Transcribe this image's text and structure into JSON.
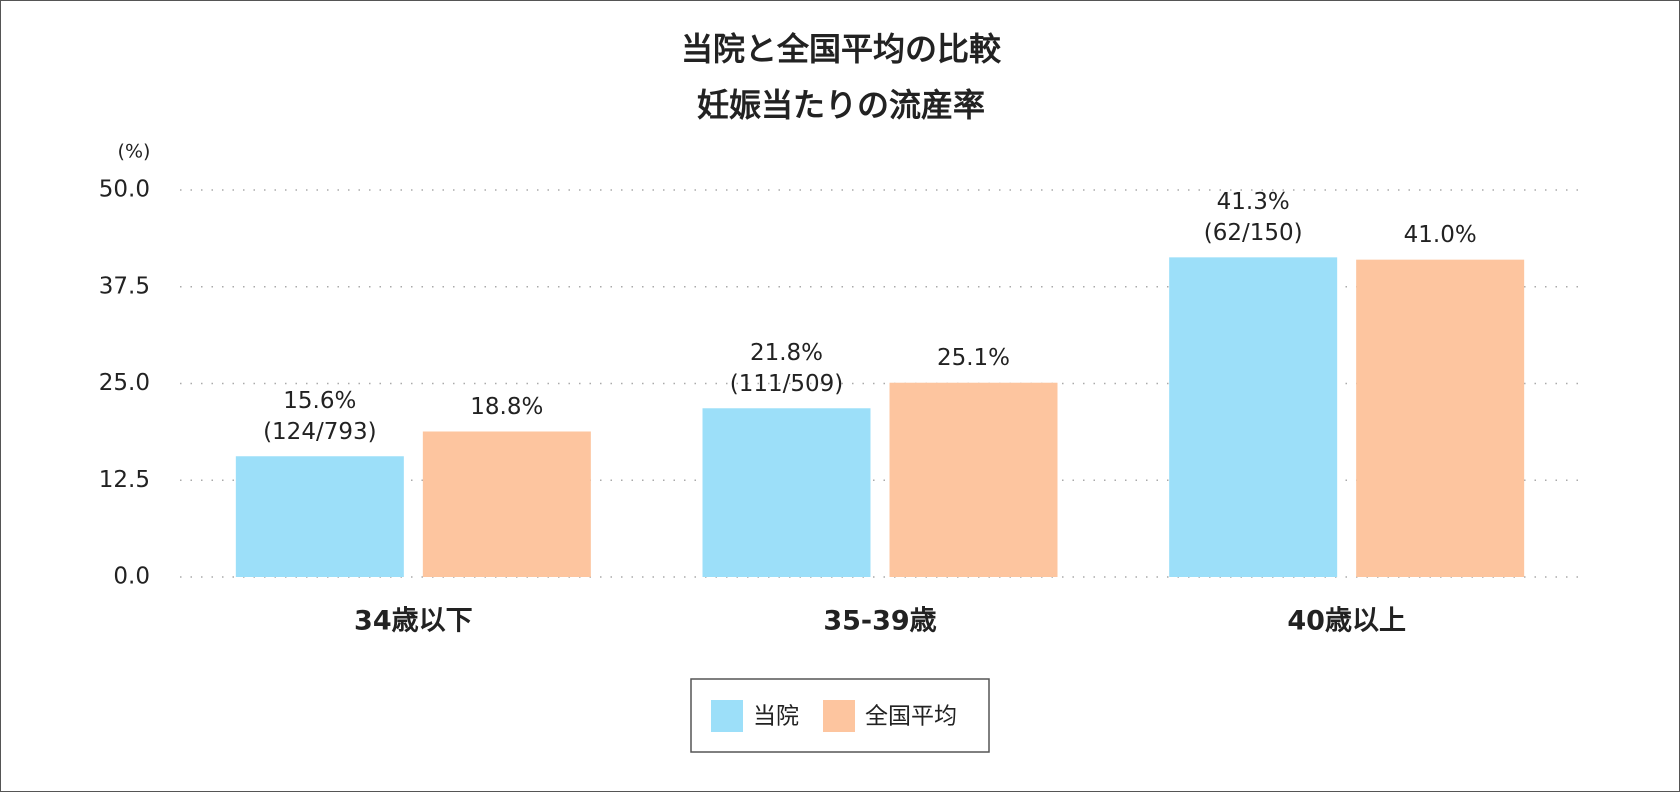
{
  "chart_data": {
    "type": "bar",
    "title": [
      "当院と全国平均の比較",
      "妊娠当たりの流産率"
    ],
    "y_unit": "(%)",
    "categories": [
      "34歳以下",
      "35-39歳",
      "40歳以上"
    ],
    "series": [
      {
        "name": "当院",
        "color": "#9cdff9",
        "values": [
          15.6,
          21.8,
          41.3
        ],
        "value_labels": [
          "15.6%",
          "21.8%",
          "41.3%"
        ],
        "value_sublabels": [
          "(124/793)",
          "(111/509)",
          "(62/150)"
        ]
      },
      {
        "name": "全国平均",
        "color": "#fdc59f",
        "values": [
          18.8,
          25.1,
          41.0
        ],
        "value_labels": [
          "18.8%",
          "25.1%",
          "41.0%"
        ]
      }
    ],
    "ylim": [
      0,
      50
    ],
    "yticks": [
      {
        "value": 0,
        "label": "0.0"
      },
      12.5,
      {
        "value": 25,
        "label": "25.0"
      },
      37.5,
      {
        "value": 50,
        "label": "50.0"
      }
    ],
    "grid": true
  }
}
